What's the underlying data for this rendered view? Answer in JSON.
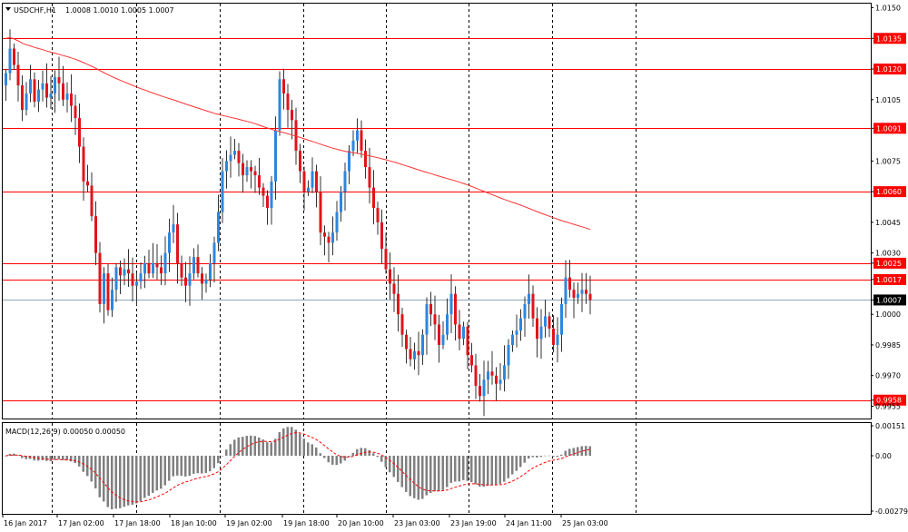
{
  "header": {
    "symbol": "USDCHF,H1",
    "ohlc": "1.0008 1.0010 1.0005 1.0007"
  },
  "macd": {
    "label": "MACD(12,26,9) 0.00050 0.00050",
    "axis_ticks": [
      "0.00151",
      "0.00",
      "-0.00279"
    ]
  },
  "colors": {
    "bull": "#2e86de",
    "bear": "#e0141b",
    "hline": "#ff0000",
    "ma": "#ff3333",
    "current_line": "#8ea5b8",
    "macd_hist": "#808080",
    "macd_signal": "#ff0000",
    "grid": "#000000"
  },
  "chart_data": [
    {
      "type": "candlestick",
      "title": "USDCHF,H1",
      "ylim": [
        0.9949,
        1.0152
      ],
      "y_ticks": [
        "1.0150",
        "1.0135",
        "1.0120",
        "1.0105",
        "1.0091",
        "1.0075",
        "1.0060",
        "1.0045",
        "1.0030",
        "1.0025",
        "1.0017",
        "1.0007",
        "1.0000",
        "0.9985",
        "0.9970",
        "0.9958",
        "0.9955"
      ],
      "x_tick_labels": [
        "16 Jan 2017",
        "17 Jan 02:00",
        "17 Jan 18:00",
        "18 Jan 10:00",
        "19 Jan 02:00",
        "19 Jan 18:00",
        "20 Jan 10:00",
        "23 Jan 03:00",
        "23 Jan 19:00",
        "24 Jan 11:00",
        "25 Jan 03:00"
      ],
      "horizontal_levels": [
        1.0135,
        1.012,
        1.0091,
        1.006,
        1.0025,
        1.0017,
        0.9958
      ],
      "current_price": 1.0007,
      "grid": "vertical dashed",
      "candles_close": [
        1.0118,
        1.013,
        1.0122,
        1.0112,
        1.01,
        1.0108,
        1.0115,
        1.0104,
        1.011,
        1.0113,
        1.0106,
        1.0108,
        1.0116,
        1.0113,
        1.0105,
        1.0108,
        1.0102,
        1.0096,
        1.0082,
        1.0065,
        1.0063,
        1.0048,
        1.003,
        1.0005,
        1.002,
        1.0002,
        1.0012,
        1.0023,
        1.0019,
        1.0022,
        1.002,
        1.0014,
        1.0016,
        1.002,
        1.0025,
        1.002,
        1.0025,
        1.0023,
        1.002,
        1.003,
        1.004,
        1.0044,
        1.0025,
        1.0018,
        1.0014,
        1.002,
        1.0028,
        1.002,
        1.0015,
        1.0017,
        1.0025,
        1.0035,
        1.005,
        1.007,
        1.0075,
        1.0078,
        1.008,
        1.0074,
        1.0068,
        1.0072,
        1.007,
        1.0068,
        1.0062,
        1.0058,
        1.0052,
        1.0065,
        1.009,
        1.0115,
        1.0108,
        1.01,
        1.0095,
        1.008,
        1.007,
        1.006,
        1.0062,
        1.007,
        1.006,
        1.004,
        1.0038,
        1.0035,
        1.004,
        1.005,
        1.006,
        1.007,
        1.008,
        1.0085,
        1.009,
        1.008,
        1.0072,
        1.0062,
        1.0052,
        1.0045,
        1.0032,
        1.0022,
        1.0015,
        1.001,
        1.0,
        0.999,
        0.9983,
        0.9978,
        0.9982,
        0.998,
        0.999,
        1.0005,
        1.0,
        0.9995,
        0.9985,
        0.999,
        1.0,
        1.001,
        0.9995,
        0.9988,
        0.9994,
        0.998,
        0.9975,
        0.9965,
        0.996,
        0.9968,
        0.9972,
        0.997,
        0.9966,
        0.9968,
        0.9975,
        0.9985,
        0.999,
        0.9992,
        0.9998,
        1.0005,
        1.001,
        0.9998,
        0.9988,
        0.9994,
        0.9999,
        0.9993,
        0.9985,
        0.999,
        1.0005,
        1.0018,
        1.0012,
        1.0008,
        1.001,
        1.0012,
        1.001,
        1.0007
      ]
    },
    {
      "type": "bar",
      "title": "MACD(12,26,9) 0.00050 0.00050",
      "ylim": [
        -0.00279,
        0.00151
      ]
    }
  ]
}
